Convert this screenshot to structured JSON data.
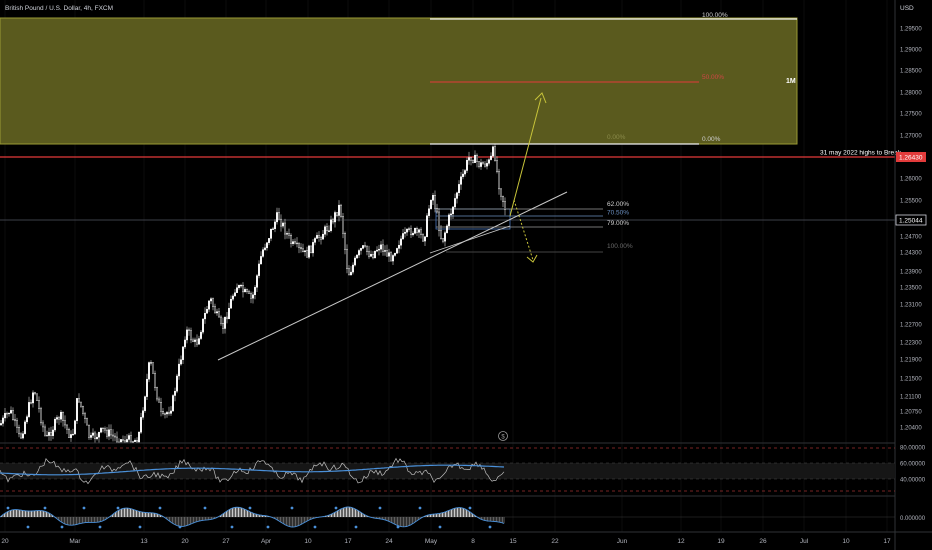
{
  "header": {
    "symbol_title": "British Pound / U.S. Dollar, 4h, FXCM",
    "currency": "USD"
  },
  "colors": {
    "background": "#000000",
    "grid": "#1a1a1a",
    "candle": "#ffffff",
    "resistance_line": "#e23b3b",
    "fib_zone_fill": "#5a5a1e",
    "fib_zone_border": "#9a9a34",
    "trendline": "#c8c8c8",
    "projection_arrow": "#c8c43a",
    "rsi_line": "#bfbfbf",
    "rsi_ma": "#4a90d9",
    "price_badge": "#e23b3b",
    "current_badge_border": "#d1d4dc"
  },
  "price_axis": {
    "labels": [
      "1.29500",
      "1.29000",
      "1.28500",
      "1.28000",
      "1.27500",
      "1.27000",
      "1.26500",
      "1.26000",
      "1.25500",
      "1.25000",
      "1.24700",
      "1.24300",
      "1.23900",
      "1.23500",
      "1.23100",
      "1.22700",
      "1.22300",
      "1.21900",
      "1.21500",
      "1.21100",
      "1.20750",
      "1.20400"
    ],
    "resistance_badge": "1.26430",
    "current_badge": "1.25044"
  },
  "time_axis": {
    "labels": [
      "20",
      "Mar",
      "13",
      "20",
      "27",
      "Apr",
      "10",
      "17",
      "24",
      "May",
      "8",
      "15",
      "22",
      "Jun",
      "12",
      "19",
      "26",
      "Jul",
      "10",
      "17"
    ]
  },
  "annotations": {
    "fib_top_pct": "100.00%",
    "fib_mid_pct": "50.00%",
    "fib_zero_inner": "0.00%",
    "fib_zero_pct": "0.00%",
    "timeframe_tag": "1M",
    "resistance_note": "31 may 2022 highs to Break",
    "retr_62": "62.00%",
    "retr_70": "70.50%",
    "retr_79": "79.00%",
    "retr_100": "100.00%"
  },
  "oscillators": {
    "rsi_labels": [
      "80.00000",
      "60.00000",
      "40.00000"
    ],
    "macd_label": "0.000000"
  },
  "icons": {
    "events_marker": "dollar-circle-icon"
  }
}
